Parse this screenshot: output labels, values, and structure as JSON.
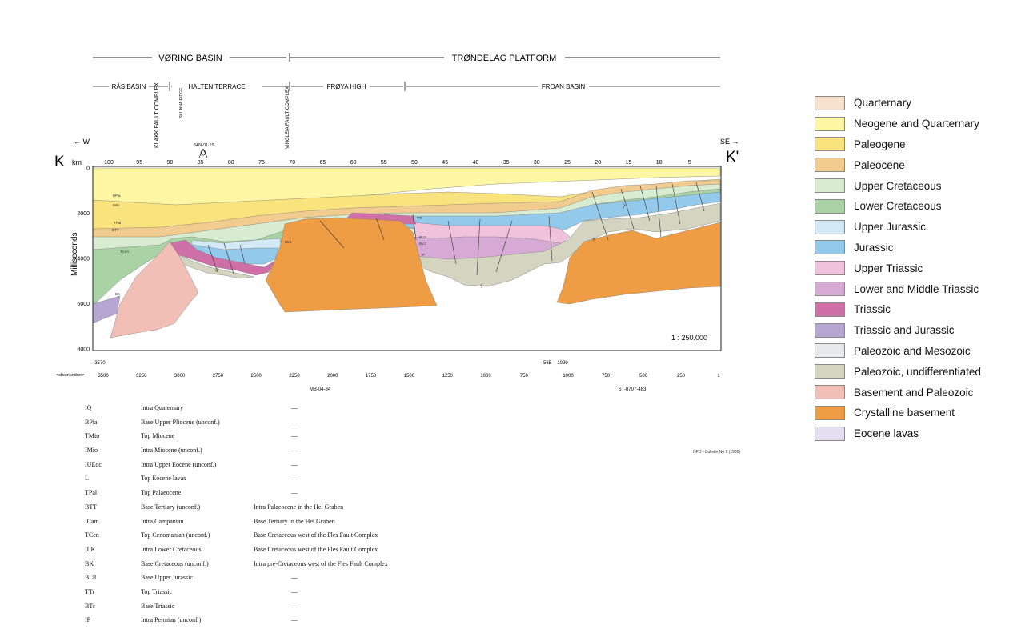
{
  "header": {
    "major_regions": [
      "VØRING BASIN",
      "TRØNDELAG PLATFORM"
    ],
    "sub_regions": [
      "RÅS BASIN",
      "HALTEN TERRACE",
      "FRØYA HIGH",
      "FROAN BASIN"
    ],
    "structures": [
      "KLAKK FAULT COMPLEX",
      "SKLINNA RIDGE",
      "VINGLEIA FAULT COMPLEX"
    ],
    "well": "6406/11-1S",
    "west_label": "← W",
    "east_label": "SE →",
    "start_label": "K",
    "end_label": "K'",
    "km_label": "km"
  },
  "axes": {
    "km_ticks": [
      "100",
      "95",
      "90",
      "85",
      "80",
      "75",
      "70",
      "65",
      "60",
      "55",
      "50",
      "45",
      "40",
      "35",
      "30",
      "25",
      "20",
      "15",
      "10",
      "5"
    ],
    "ms_ticks": [
      "0",
      "2000",
      "4000",
      "6000",
      "8000"
    ],
    "y_label": "Milliseconds",
    "scale": "1 : 250.000"
  },
  "shotpoints": {
    "label": "<shotnumber>",
    "line1_ticks": [
      "3500",
      "3250",
      "3000",
      "2750",
      "2500",
      "2250",
      "2000",
      "1750",
      "1500",
      "1250",
      "1000",
      "750"
    ],
    "line2_ticks": [
      "1000",
      "750",
      "500",
      "250",
      "1"
    ],
    "line1_start": "3570",
    "tie_left": "565",
    "tie_right": "1099",
    "line1_name": "MB-04-84",
    "line2_name": "ST-8707-483"
  },
  "layer_labels": [
    "BPia",
    "IMio",
    "TPal",
    "BTT",
    "TCen",
    "BK",
    "TTr",
    "BUJ",
    "BuJ",
    "BtrJ",
    "IP",
    "?"
  ],
  "legend": [
    {
      "label": "Quarternary",
      "color": "#f7e3cd"
    },
    {
      "label": "Neogene and Quarternary",
      "color": "#fdf6a3"
    },
    {
      "label": "Paleogene",
      "color": "#f9e37c"
    },
    {
      "label": "Paleocene",
      "color": "#f2cc8e"
    },
    {
      "label": "Upper Cretaceous",
      "color": "#d8ecd2"
    },
    {
      "label": "Lower Cretaceous",
      "color": "#a9d3a4"
    },
    {
      "label": "Upper Jurassic",
      "color": "#d4e9f6"
    },
    {
      "label": "Jurassic",
      "color": "#93c9ea"
    },
    {
      "label": "Upper Triassic",
      "color": "#f0c2dc"
    },
    {
      "label": "Lower and Middle Triassic",
      "color": "#d6aad4"
    },
    {
      "label": "Triassic",
      "color": "#cf6fa7"
    },
    {
      "label": "Triassic and Jurassic",
      "color": "#b6a6d2"
    },
    {
      "label": "Paleozoic and Mesozoic",
      "color": "#e8e9eb"
    },
    {
      "label": "Paleozoic, undifferentiated",
      "color": "#d3d5c1"
    },
    {
      "label": "Basement and Paleozoic",
      "color": "#f2bfb6"
    },
    {
      "label": "Crystalline basement",
      "color": "#ee9d44"
    },
    {
      "label": "Eocene lavas",
      "color": "#e4dff0"
    }
  ],
  "horizons": [
    {
      "code": "IQ",
      "name": "Intra Quaternary",
      "note": "",
      "dash": "—"
    },
    {
      "code": "BPia",
      "name": "Base Upper Pliocene (unconf.)",
      "note": "",
      "dash": "—"
    },
    {
      "code": "TMio",
      "name": "Top Miocene",
      "note": "",
      "dash": "—"
    },
    {
      "code": "IMio",
      "name": "Intra Miocene (unconf.)",
      "note": "",
      "dash": "—"
    },
    {
      "code": "IUEoc",
      "name": "Intra Upper Eocene (unconf.)",
      "note": "",
      "dash": "—"
    },
    {
      "code": "L",
      "name": "Top Eocene lavas",
      "note": "",
      "dash": "—"
    },
    {
      "code": "TPal",
      "name": "Top Palaeocene",
      "note": "",
      "dash": "—"
    },
    {
      "code": "BTT",
      "name": "Base Tertiary (unconf.)",
      "note": "Intra Palaeocene in the Hel Graben",
      "dash": ""
    },
    {
      "code": "ICam",
      "name": "Intra Campanian",
      "note": "Base Tertiary in the Hel Graben",
      "dash": ""
    },
    {
      "code": "TCen",
      "name": "Top Cenomanian (unconf.)",
      "note": "Base Cretaceous west of the Fles Fault Complex",
      "dash": ""
    },
    {
      "code": "ILK",
      "name": "Intra Lower Cretaceous",
      "note": "Base Cretaceous west of the Fles Fault Complex",
      "dash": ""
    },
    {
      "code": "BK",
      "name": "Base Cretaceous (unconf.)",
      "note": "Intra pre-Cretaceous west of the Fles Fault Complex",
      "dash": ""
    },
    {
      "code": "BUJ",
      "name": "Base Upper Jurassic",
      "note": "",
      "dash": "—"
    },
    {
      "code": "TTr",
      "name": "Top Triassic",
      "note": "",
      "dash": "—"
    },
    {
      "code": "BTr",
      "name": "Base Triassic",
      "note": "",
      "dash": "—"
    },
    {
      "code": "IP",
      "name": "Intra Permian (unconf.)",
      "note": "",
      "dash": "—"
    }
  ],
  "source": "NPD - Bulletin No 8 (1995)"
}
